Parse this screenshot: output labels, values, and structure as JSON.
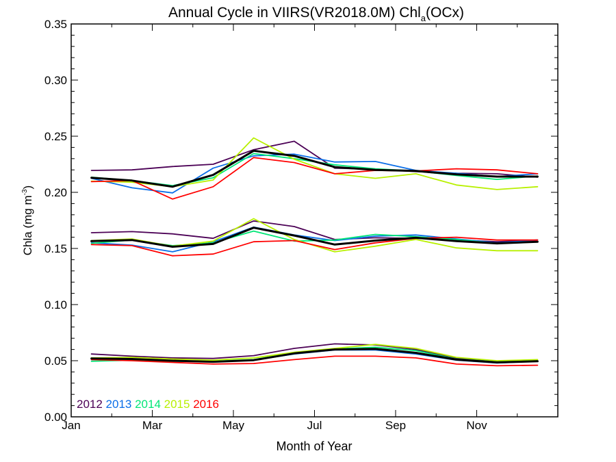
{
  "chart_data": {
    "type": "line",
    "title_main": "Annual Cycle in VIIRS(VR2018.0M) Chl",
    "title_sub": "a",
    "title_tail": "(OCx)",
    "xlabel": "Month of Year",
    "ylabel_main": "Chla (mg m",
    "ylabel_sup": "-3",
    "ylabel_tail": ")",
    "xlim": [
      1,
      13
    ],
    "ylim": [
      0,
      0.35
    ],
    "x_ticks": [
      1,
      3,
      5,
      7,
      9,
      11
    ],
    "x_tick_labels": [
      "Jan",
      "Mar",
      "May",
      "Jul",
      "Sep",
      "Nov"
    ],
    "y_ticks": [
      0,
      0.05,
      0.1,
      0.15,
      0.2,
      0.25,
      0.3,
      0.35
    ],
    "y_tick_labels": [
      "0.00",
      "0.05",
      "0.10",
      "0.15",
      "0.20",
      "0.25",
      "0.30",
      "0.35"
    ],
    "grid": false,
    "legend_position": "bottom-left",
    "legend": [
      {
        "label": "2012",
        "color": "#4b0055"
      },
      {
        "label": "2013",
        "color": "#0a6ee8"
      },
      {
        "label": "2014",
        "color": "#00e676"
      },
      {
        "label": "2015",
        "color": "#b8f000"
      },
      {
        "label": "2016",
        "color": "#ff0000"
      }
    ],
    "x": [
      1.5,
      2.5,
      3.5,
      4.5,
      5.5,
      6.5,
      7.5,
      8.5,
      9.5,
      10.5,
      11.5,
      12.5
    ],
    "groups": [
      {
        "series": [
          {
            "name": "2012",
            "color": "#4b0055",
            "values": [
              0.2195,
              0.22,
              0.223,
              0.225,
              0.238,
              0.2455,
              0.2215,
              0.2205,
              0.2185,
              0.217,
              0.2165,
              0.2135
            ]
          },
          {
            "name": "2013",
            "color": "#0a6ee8",
            "values": [
              0.2125,
              0.204,
              0.1995,
              0.2215,
              0.2325,
              0.234,
              0.227,
              0.2275,
              0.2195,
              0.217,
              0.214,
              0.2165
            ]
          },
          {
            "name": "2014",
            "color": "#00e676",
            "values": [
              0.2135,
              0.2105,
              0.206,
              0.213,
              0.2345,
              0.23,
              0.2245,
              0.221,
              0.219,
              0.215,
              0.2115,
              0.2145
            ]
          },
          {
            "name": "2015",
            "color": "#b8f000",
            "values": [
              0.21,
              0.209,
              0.205,
              0.211,
              0.2485,
              0.2295,
              0.2165,
              0.2125,
              0.2165,
              0.2065,
              0.2025,
              0.205
            ]
          },
          {
            "name": "2016",
            "color": "#ff0000",
            "values": [
              0.2095,
              0.2105,
              0.194,
              0.205,
              0.231,
              0.2265,
              0.2165,
              0.2195,
              0.219,
              0.221,
              0.22,
              0.2165
            ]
          },
          {
            "name": "mean",
            "color": "#000000",
            "width": 3,
            "values": [
              0.213,
              0.2105,
              0.205,
              0.2155,
              0.237,
              0.2325,
              0.2225,
              0.22,
              0.219,
              0.216,
              0.214,
              0.214
            ]
          }
        ]
      },
      {
        "series": [
          {
            "name": "2012",
            "color": "#4b0055",
            "values": [
              0.164,
              0.165,
              0.163,
              0.159,
              0.1745,
              0.1695,
              0.158,
              0.1595,
              0.159,
              0.1575,
              0.156,
              0.1575
            ]
          },
          {
            "name": "2013",
            "color": "#0a6ee8",
            "values": [
              0.155,
              0.153,
              0.147,
              0.156,
              0.169,
              0.162,
              0.157,
              0.161,
              0.162,
              0.1585,
              0.155,
              0.1575
            ]
          },
          {
            "name": "2014",
            "color": "#00e676",
            "values": [
              0.1545,
              0.1575,
              0.1525,
              0.155,
              0.1655,
              0.1565,
              0.1575,
              0.1625,
              0.1605,
              0.158,
              0.1545,
              0.156
            ]
          },
          {
            "name": "2015",
            "color": "#b8f000",
            "values": [
              0.157,
              0.1585,
              0.152,
              0.1565,
              0.1765,
              0.158,
              0.147,
              0.152,
              0.158,
              0.1505,
              0.148,
              0.148
            ]
          },
          {
            "name": "2016",
            "color": "#ff0000",
            "values": [
              0.1535,
              0.1525,
              0.1435,
              0.145,
              0.156,
              0.157,
              0.149,
              0.155,
              0.159,
              0.16,
              0.1575,
              0.1575
            ]
          },
          {
            "name": "mean",
            "color": "#000000",
            "width": 3,
            "values": [
              0.1565,
              0.1575,
              0.1515,
              0.154,
              0.1685,
              0.1615,
              0.1535,
              0.157,
              0.1595,
              0.1565,
              0.1545,
              0.156
            ]
          }
        ]
      },
      {
        "series": [
          {
            "name": "2012",
            "color": "#4b0055",
            "values": [
              0.056,
              0.054,
              0.0525,
              0.052,
              0.0545,
              0.061,
              0.065,
              0.064,
              0.06,
              0.052,
              0.0495,
              0.05
            ]
          },
          {
            "name": "2013",
            "color": "#0a6ee8",
            "values": [
              0.051,
              0.0505,
              0.0495,
              0.049,
              0.0505,
              0.056,
              0.0595,
              0.0595,
              0.056,
              0.0505,
              0.048,
              0.0495
            ]
          },
          {
            "name": "2014",
            "color": "#00e676",
            "values": [
              0.0495,
              0.0505,
              0.0495,
              0.0495,
              0.051,
              0.057,
              0.0605,
              0.062,
              0.059,
              0.0515,
              0.049,
              0.05
            ]
          },
          {
            "name": "2015",
            "color": "#b8f000",
            "values": [
              0.0525,
              0.053,
              0.0515,
              0.0505,
              0.0525,
              0.0575,
              0.061,
              0.0645,
              0.061,
              0.053,
              0.05,
              0.051
            ]
          },
          {
            "name": "2016",
            "color": "#ff0000",
            "values": [
              0.051,
              0.05,
              0.0485,
              0.047,
              0.0475,
              0.051,
              0.054,
              0.054,
              0.0525,
              0.047,
              0.0455,
              0.046
            ]
          },
          {
            "name": "mean",
            "color": "#000000",
            "width": 3,
            "values": [
              0.052,
              0.0515,
              0.05,
              0.049,
              0.0505,
              0.0565,
              0.06,
              0.0605,
              0.057,
              0.051,
              0.0485,
              0.0495
            ]
          }
        ]
      }
    ]
  }
}
